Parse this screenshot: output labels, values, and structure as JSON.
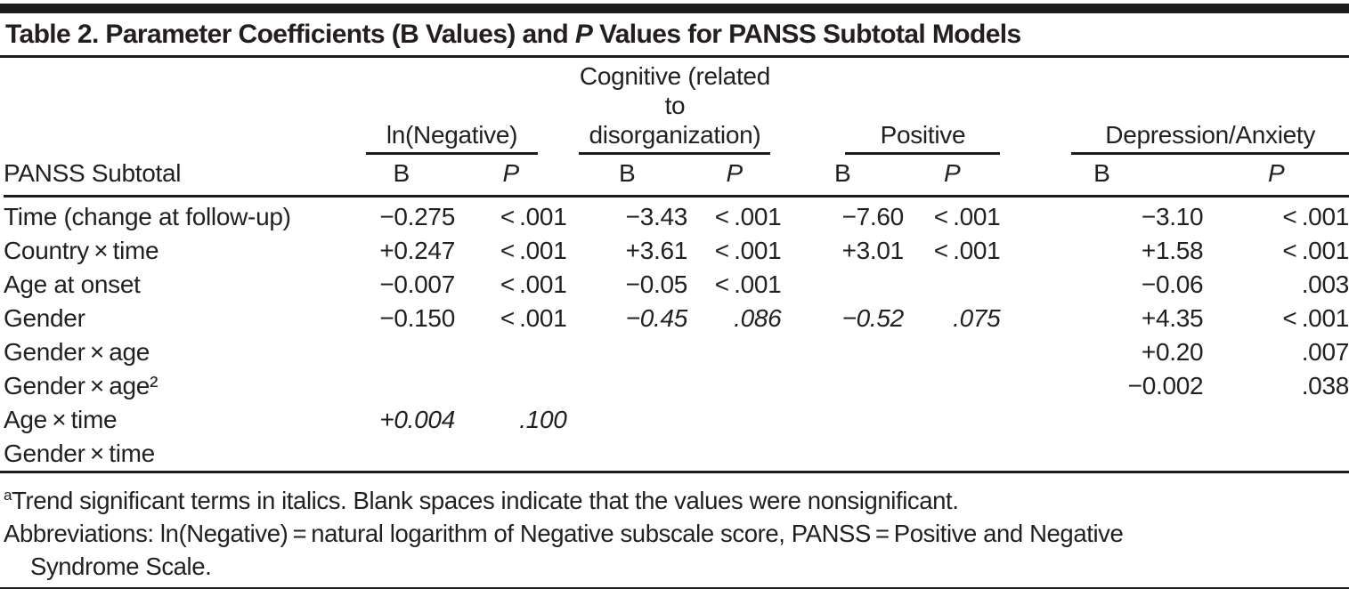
{
  "title": {
    "prefix": "Table 2. Parameter Coefficients (B Values) and ",
    "p_italic": "P",
    "suffix": " Values for PANSS Subtotal Models"
  },
  "table": {
    "stub_header": "PANSS Subtotal",
    "groups": [
      {
        "label": "ln(Negative)"
      },
      {
        "label": "Cognitive (related\nto disorganization)"
      },
      {
        "label": "Positive"
      },
      {
        "label": "Depression/Anxiety"
      }
    ],
    "subheaders": {
      "b": "B",
      "p": "P"
    },
    "rows": [
      {
        "label": "Time (change at follow-up)",
        "cells": [
          {
            "v": "−0.275"
          },
          {
            "v": "< .001"
          },
          {
            "v": "−3.43"
          },
          {
            "v": "< .001"
          },
          {
            "v": "−7.60"
          },
          {
            "v": "< .001"
          },
          {
            "v": "−3.10"
          },
          {
            "v": "< .001"
          }
        ]
      },
      {
        "label": "Country × time",
        "cells": [
          {
            "v": "+0.247"
          },
          {
            "v": "< .001"
          },
          {
            "v": "+3.61"
          },
          {
            "v": "< .001"
          },
          {
            "v": "+3.01"
          },
          {
            "v": "< .001"
          },
          {
            "v": "+1.58"
          },
          {
            "v": "< .001"
          }
        ]
      },
      {
        "label": "Age at onset",
        "cells": [
          {
            "v": "−0.007"
          },
          {
            "v": "< .001"
          },
          {
            "v": "−0.05"
          },
          {
            "v": "< .001"
          },
          {
            "v": ""
          },
          {
            "v": ""
          },
          {
            "v": "−0.06"
          },
          {
            "v": ".003"
          }
        ]
      },
      {
        "label": "Gender",
        "cells": [
          {
            "v": "−0.150"
          },
          {
            "v": "< .001"
          },
          {
            "v": "−0.45",
            "i": true
          },
          {
            "v": ".086",
            "i": true
          },
          {
            "v": "−0.52",
            "i": true
          },
          {
            "v": ".075",
            "i": true
          },
          {
            "v": "+4.35"
          },
          {
            "v": "< .001"
          }
        ]
      },
      {
        "label": "Gender × age",
        "cells": [
          {
            "v": ""
          },
          {
            "v": ""
          },
          {
            "v": ""
          },
          {
            "v": ""
          },
          {
            "v": ""
          },
          {
            "v": ""
          },
          {
            "v": "+0.20"
          },
          {
            "v": ".007"
          }
        ]
      },
      {
        "label": "Gender × age²",
        "cells": [
          {
            "v": ""
          },
          {
            "v": ""
          },
          {
            "v": ""
          },
          {
            "v": ""
          },
          {
            "v": ""
          },
          {
            "v": ""
          },
          {
            "v": "−0.002"
          },
          {
            "v": ".038"
          }
        ]
      },
      {
        "label": "Age × time",
        "cells": [
          {
            "v": "+0.004",
            "i": true
          },
          {
            "v": ".100",
            "i": true
          },
          {
            "v": ""
          },
          {
            "v": ""
          },
          {
            "v": ""
          },
          {
            "v": ""
          },
          {
            "v": ""
          },
          {
            "v": ""
          }
        ]
      },
      {
        "label": "Gender × time",
        "cells": [
          {
            "v": ""
          },
          {
            "v": ""
          },
          {
            "v": ""
          },
          {
            "v": ""
          },
          {
            "v": ""
          },
          {
            "v": ""
          },
          {
            "v": ""
          },
          {
            "v": ""
          }
        ]
      }
    ]
  },
  "footnotes": [
    {
      "marker": "a",
      "text": "Trend significant terms in italics. Blank spaces indicate that the values were nonsignificant."
    },
    {
      "marker": "",
      "text": "Abbreviations: ln(Negative) = natural logarithm of Negative subscale score, PANSS = Positive and Negative",
      "text2": "Syndrome Scale."
    }
  ],
  "colors": {
    "ink": "#231f20",
    "rule": "#1c1c1c",
    "background": "#ffffff"
  }
}
